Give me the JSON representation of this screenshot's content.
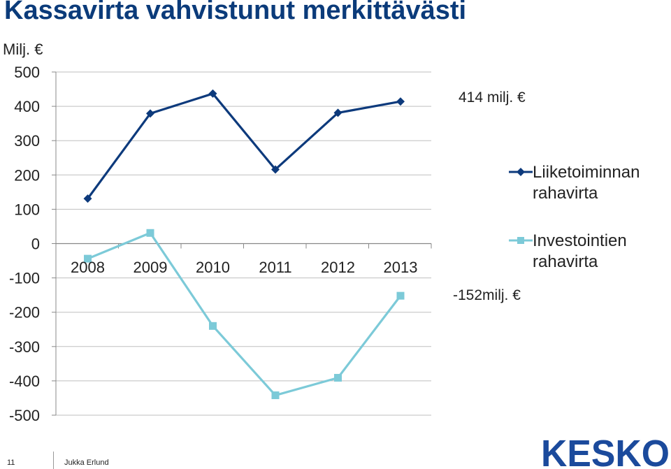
{
  "slide": {
    "title": "Kassavirta vahvistunut merkittävästi",
    "unit_label": "Milj. €",
    "footer_page": "11",
    "footer_author": "Jukka Erlund",
    "logo_text": "KESKO"
  },
  "colors": {
    "title": "#0b3b7a",
    "series_operating": "#0d3a7c",
    "series_investing": "#7ccad8",
    "grid": "#bfbfbf",
    "logo": "#1b4a9c"
  },
  "chart_data": {
    "type": "line",
    "x": [
      "2008",
      "2009",
      "2010",
      "2011",
      "2012",
      "2013"
    ],
    "ylim": [
      -500,
      500
    ],
    "yticks": [
      500,
      400,
      300,
      200,
      100,
      0,
      -100,
      -200,
      -300,
      -400,
      -500
    ],
    "grid": true,
    "series": [
      {
        "name": "Liiketoiminnan rahavirta",
        "values": [
          131,
          379,
          437,
          216,
          381,
          414
        ],
        "marker": "diamond"
      },
      {
        "name": "Investointien rahavirta",
        "values": [
          -44,
          31,
          -240,
          -442,
          -391,
          -152
        ],
        "marker": "square"
      }
    ],
    "annotations": [
      "414 milj. €",
      "-152milj. €"
    ],
    "legend_placement": "right"
  }
}
